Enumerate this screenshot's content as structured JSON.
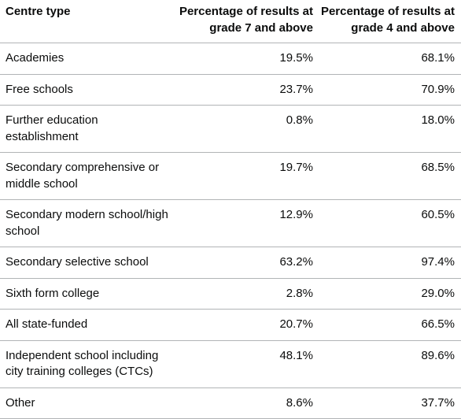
{
  "table": {
    "headers": [
      "Centre type",
      "Percentage of results at grade 7 and above",
      "Percentage of results at grade 4 and above"
    ],
    "rows": [
      [
        "Academies",
        "19.5%",
        "68.1%"
      ],
      [
        "Free schools",
        "23.7%",
        "70.9%"
      ],
      [
        "Further education establishment",
        "0.8%",
        "18.0%"
      ],
      [
        "Secondary comprehensive or middle school",
        "19.7%",
        "68.5%"
      ],
      [
        "Secondary modern school/high school",
        "12.9%",
        "60.5%"
      ],
      [
        "Secondary selective school",
        "63.2%",
        "97.4%"
      ],
      [
        "Sixth form college",
        "2.8%",
        "29.0%"
      ],
      [
        "All state-funded",
        "20.7%",
        "66.5%"
      ],
      [
        "Independent school including city training colleges (CTCs)",
        "48.1%",
        "89.6%"
      ],
      [
        "Other",
        "8.6%",
        "37.7%"
      ]
    ]
  }
}
